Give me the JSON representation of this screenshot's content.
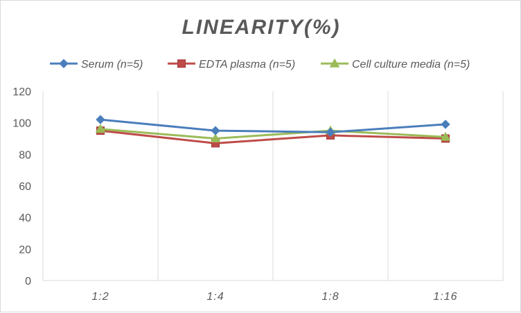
{
  "chart_data": {
    "type": "line",
    "title": "LINEARITY(%)",
    "xlabel": "",
    "ylabel": "",
    "categories": [
      "1:2",
      "1:4",
      "1:8",
      "1:16"
    ],
    "ylim": [
      0,
      120
    ],
    "yticks": [
      0,
      20,
      40,
      60,
      80,
      100,
      120
    ],
    "grid": "vertical",
    "legend_position": "top",
    "series": [
      {
        "name": "Serum (n=5)",
        "values": [
          102,
          95,
          94,
          99
        ],
        "color": "#4a7ebb",
        "marker": "diamond"
      },
      {
        "name": "EDTA plasma (n=5)",
        "values": [
          95,
          87,
          92,
          90
        ],
        "color": "#be4b48",
        "marker": "square"
      },
      {
        "name": "Cell culture media (n=5)",
        "values": [
          96,
          90,
          95,
          91
        ],
        "color": "#9bbb59",
        "marker": "triangle"
      }
    ]
  }
}
